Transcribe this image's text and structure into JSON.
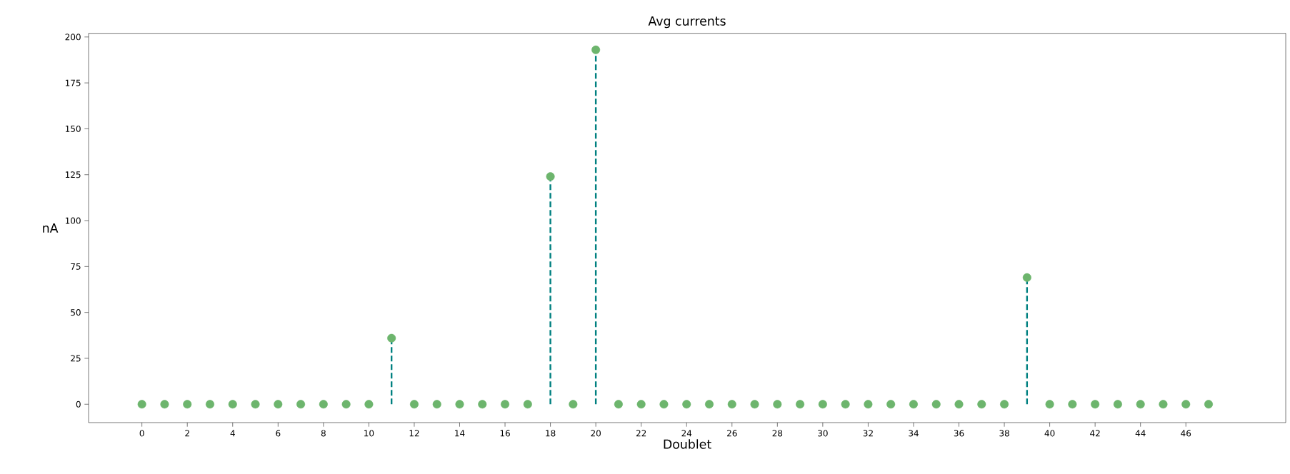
{
  "chart_data": {
    "type": "lollipop",
    "title": "Avg currents",
    "xlabel": "Doublet",
    "ylabel": "nA",
    "x": [
      0,
      1,
      2,
      3,
      4,
      5,
      6,
      7,
      8,
      9,
      10,
      11,
      12,
      13,
      14,
      15,
      16,
      17,
      18,
      19,
      20,
      21,
      22,
      23,
      24,
      25,
      26,
      27,
      28,
      29,
      30,
      31,
      32,
      33,
      34,
      35,
      36,
      37,
      38,
      39,
      40,
      41,
      42,
      43,
      44,
      45,
      46,
      47
    ],
    "series": [
      {
        "color": "#6db56d",
        "values": [
          0,
          0,
          0,
          0,
          0,
          0,
          0,
          0,
          0,
          0,
          0,
          36,
          0,
          0,
          0,
          0,
          0,
          0,
          124,
          0,
          193,
          0,
          0,
          0,
          0,
          0,
          0,
          0,
          0,
          0,
          0,
          0,
          0,
          0,
          0,
          0,
          0,
          0,
          0,
          69,
          0,
          0,
          0,
          0,
          0,
          0,
          0,
          0
        ]
      }
    ],
    "xlim": [
      -2.35,
      50.4
    ],
    "ylim": [
      -10,
      202
    ],
    "xticks": [
      0,
      2,
      4,
      6,
      8,
      10,
      12,
      14,
      16,
      18,
      20,
      22,
      24,
      26,
      28,
      30,
      32,
      34,
      36,
      38,
      40,
      42,
      44,
      46
    ],
    "yticks": [
      0,
      25,
      50,
      75,
      100,
      125,
      150,
      175,
      200
    ],
    "marker": "circle",
    "line_style": "dashed"
  }
}
